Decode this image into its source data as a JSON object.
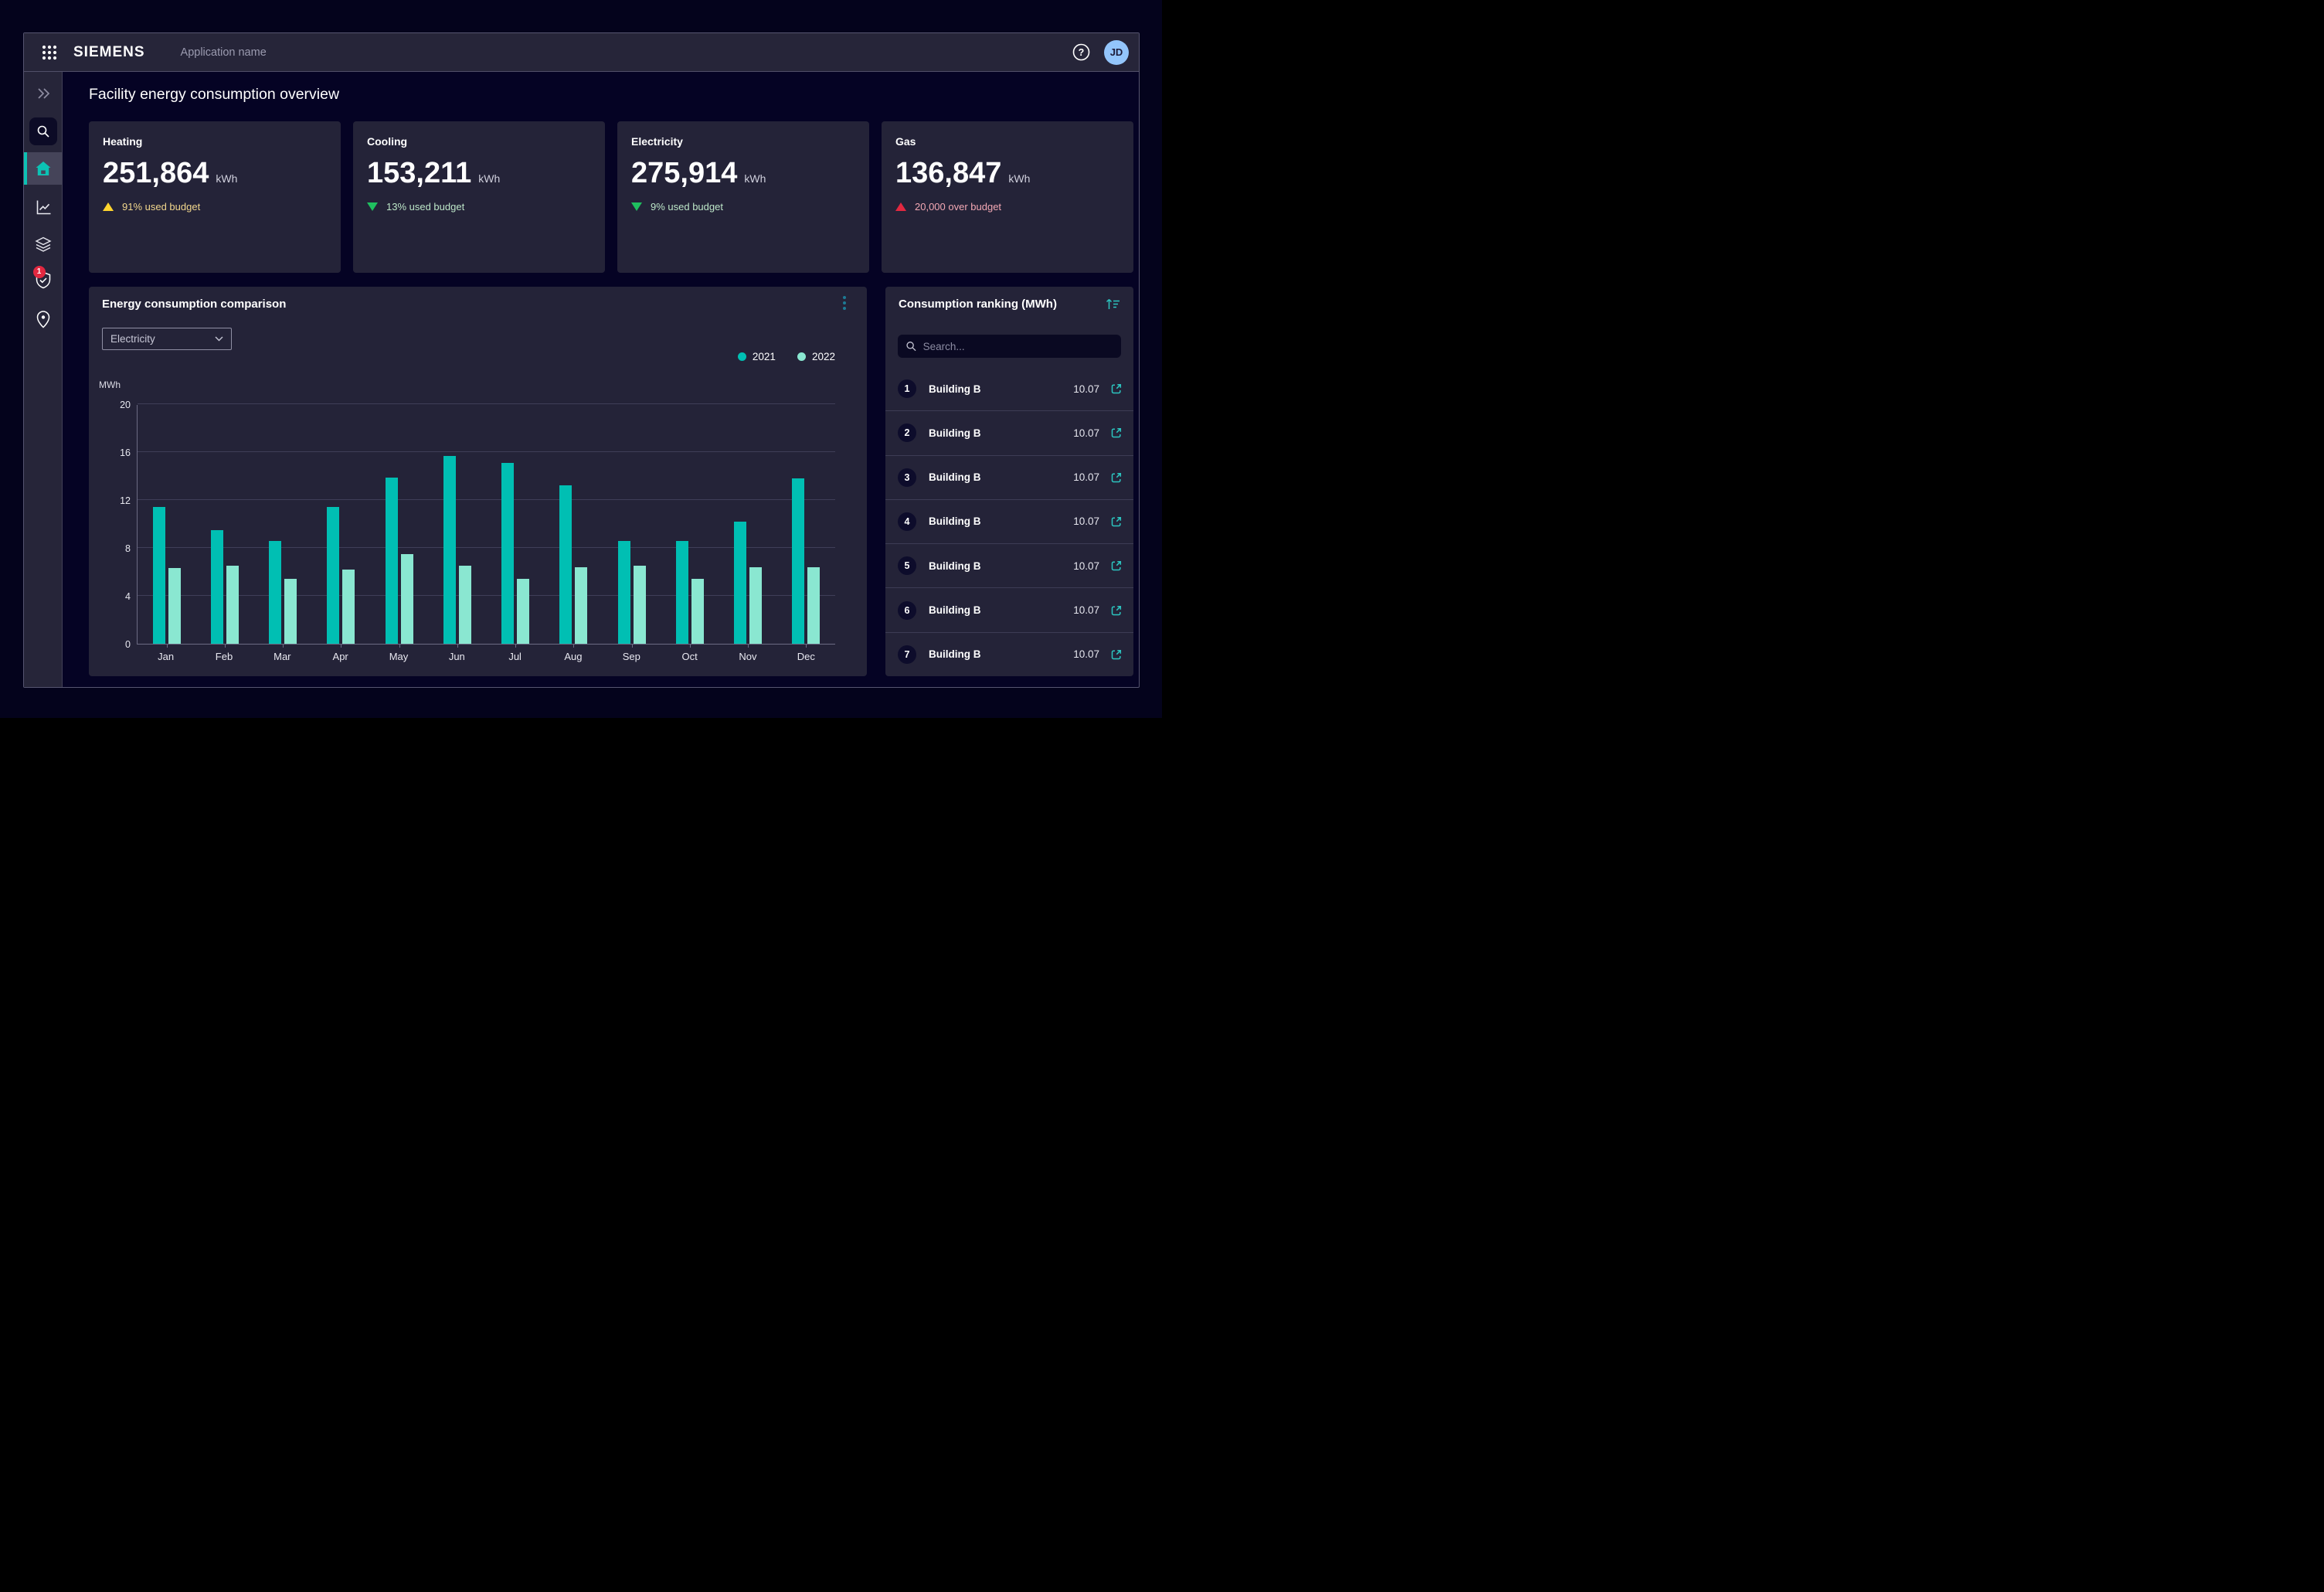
{
  "header": {
    "logo": "SIEMENS",
    "app_name": "Application name",
    "avatar_initials": "JD"
  },
  "sidebar": {
    "badge_count": "1",
    "items": [
      "expand",
      "search",
      "home",
      "trend-chart",
      "layers",
      "shield-check",
      "location-pin"
    ],
    "active_item": "home"
  },
  "page": {
    "title": "Facility energy consumption overview"
  },
  "kpis": [
    {
      "title": "Heating",
      "value": "251,864",
      "unit": "kWh",
      "status": {
        "text": "91% used budget",
        "level": "warning",
        "direction": "up"
      }
    },
    {
      "title": "Cooling",
      "value": "153,211",
      "unit": "kWh",
      "status": {
        "text": "13% used budget",
        "level": "good",
        "direction": "down"
      }
    },
    {
      "title": "Electricity",
      "value": "275,914",
      "unit": "kWh",
      "status": {
        "text": "9% used budget",
        "level": "good",
        "direction": "down"
      }
    },
    {
      "title": "Gas",
      "value": "136,847",
      "unit": "kWh",
      "status": {
        "text": "20,000 over budget",
        "level": "alert",
        "direction": "up"
      }
    }
  ],
  "comparison": {
    "title": "Energy consumption comparison",
    "filter_value": "Electricity"
  },
  "chart_data": {
    "type": "bar",
    "title": "Energy consumption comparison",
    "xlabel": "",
    "ylabel": "MWh",
    "ylim": [
      0,
      20
    ],
    "yticks": [
      0,
      4,
      8,
      12,
      16,
      20
    ],
    "grid": true,
    "legend_position": "top-right",
    "categories": [
      "Jan",
      "Feb",
      "Mar",
      "Apr",
      "May",
      "Jun",
      "Jul",
      "Aug",
      "Sep",
      "Oct",
      "Nov",
      "Dec"
    ],
    "series": [
      {
        "name": "2021",
        "color": "#00bfb3",
        "values": [
          11.4,
          9.5,
          8.6,
          11.4,
          13.9,
          15.7,
          15.1,
          13.2,
          8.6,
          8.6,
          10.2,
          13.8
        ]
      },
      {
        "name": "2022",
        "color": "#8ae7d1",
        "values": [
          6.3,
          6.5,
          5.4,
          6.2,
          7.5,
          6.5,
          5.4,
          6.4,
          6.5,
          5.4,
          6.4,
          6.4
        ]
      }
    ]
  },
  "ranking": {
    "title": "Consumption ranking (MWh)",
    "search_placeholder": "Search...",
    "rows": [
      {
        "rank": "1",
        "name": "Building B",
        "value": "10.07"
      },
      {
        "rank": "2",
        "name": "Building B",
        "value": "10.07"
      },
      {
        "rank": "3",
        "name": "Building B",
        "value": "10.07"
      },
      {
        "rank": "4",
        "name": "Building B",
        "value": "10.07"
      },
      {
        "rank": "5",
        "name": "Building B",
        "value": "10.07"
      },
      {
        "rank": "6",
        "name": "Building B",
        "value": "10.07"
      },
      {
        "rank": "7",
        "name": "Building B",
        "value": "10.07"
      }
    ]
  },
  "colors": {
    "accent_teal": "#00bfb3",
    "pale_teal": "#8ae7d1",
    "warning_yellow": "#ffd42e",
    "good_green": "#1fbf5f",
    "alert_red": "#e22840",
    "avatar_blue": "#93c5fb",
    "card_bg": "#242338",
    "header_bg": "#262539"
  }
}
